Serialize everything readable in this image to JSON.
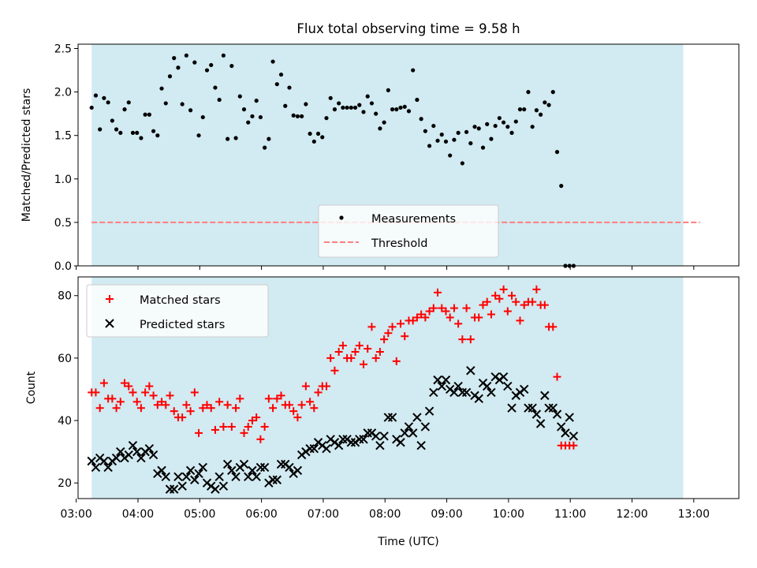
{
  "title": "Flux total observing time = 9.58 h",
  "colors": {
    "shade": "#add8e6",
    "measurement": "#000000",
    "threshold": "#ff7f7f",
    "matched": "#ff0000",
    "predicted": "#000000"
  },
  "chart_data": [
    {
      "type": "scatter",
      "title": "Flux total observing time = 9.58 h",
      "xlabel": "",
      "ylabel": "Matched/Predicted stars",
      "xlim": [
        3.03,
        13.73
      ],
      "ylim": [
        0,
        2.55
      ],
      "yticks": [
        0.0,
        0.5,
        1.0,
        1.5,
        2.0,
        2.5
      ],
      "ytick_labels": [
        "0.0",
        "0.5",
        "1.0",
        "1.5",
        "2.0",
        "2.5"
      ],
      "shaded_span": [
        3.25,
        12.83
      ],
      "threshold": 0.5,
      "threshold_span": [
        3.25,
        13.1
      ],
      "legend": {
        "position": "lower-center",
        "entries": [
          "Measurements",
          "Threshold"
        ]
      },
      "series": [
        {
          "name": "Measurements",
          "x_start": 3.25,
          "x_step": 0.0667,
          "values": [
            1.82,
            1.96,
            1.57,
            1.93,
            1.88,
            1.67,
            1.57,
            1.53,
            1.8,
            1.88,
            1.53,
            1.53,
            1.47,
            1.74,
            1.74,
            1.55,
            1.5,
            2.04,
            1.87,
            2.18,
            2.39,
            2.28,
            1.86,
            2.42,
            1.79,
            2.34,
            1.5,
            1.71,
            2.25,
            2.31,
            2.05,
            1.91,
            2.42,
            1.46,
            2.3,
            1.47,
            1.95,
            1.8,
            1.65,
            1.72,
            1.9,
            1.71,
            1.36,
            1.46,
            2.35,
            2.09,
            2.2,
            1.84,
            2.05,
            1.73,
            1.72,
            1.72,
            1.86,
            1.52,
            1.43,
            1.52,
            1.48,
            1.7,
            1.93,
            1.8,
            1.87,
            1.82,
            1.82,
            1.82,
            1.82,
            1.85,
            1.77,
            1.95,
            1.87,
            1.75,
            1.58,
            1.65,
            2.02,
            1.8,
            1.8,
            1.82,
            1.83,
            1.78,
            2.25,
            1.91,
            1.69,
            1.55,
            1.38,
            1.61,
            1.44,
            1.51,
            1.43,
            1.27,
            1.45,
            1.53,
            1.18,
            1.54,
            1.41,
            1.6,
            1.58,
            1.36,
            1.63,
            1.46,
            1.61,
            1.7,
            1.65,
            1.6,
            1.53,
            1.66,
            1.8,
            1.8,
            2.0,
            1.6,
            1.79,
            1.74,
            1.88,
            1.85,
            2.0,
            1.31,
            0.92,
            0.0,
            0.0,
            0.0
          ]
        }
      ]
    },
    {
      "type": "scatter",
      "xlabel": "Time (UTC)",
      "ylabel": "Count",
      "xlim": [
        3.03,
        13.73
      ],
      "ylim": [
        15,
        86
      ],
      "yticks": [
        20,
        40,
        60,
        80
      ],
      "ytick_labels": [
        "20",
        "40",
        "60",
        "80"
      ],
      "xticks": [
        3,
        4,
        5,
        6,
        7,
        8,
        9,
        10,
        11,
        12,
        13
      ],
      "xtick_labels": [
        "03:00",
        "04:00",
        "05:00",
        "06:00",
        "07:00",
        "08:00",
        "09:00",
        "10:00",
        "11:00",
        "12:00",
        "13:00"
      ],
      "shaded_span": [
        3.25,
        12.83
      ],
      "legend": {
        "position": "upper-left",
        "entries": [
          "Matched stars",
          "Predicted stars"
        ]
      },
      "series": [
        {
          "name": "Matched stars",
          "x_start": 3.25,
          "x_step": 0.0667,
          "values": [
            49,
            49,
            44,
            52,
            47,
            47,
            44,
            46,
            52,
            51,
            49,
            46,
            44,
            49,
            51,
            48,
            45,
            46,
            45,
            48,
            43,
            41,
            41,
            45,
            43,
            49,
            36,
            44,
            45,
            44,
            37,
            46,
            38,
            45,
            38,
            44,
            47,
            36,
            38,
            40,
            41,
            34,
            38,
            47,
            44,
            47,
            48,
            45,
            45,
            43,
            41,
            45,
            51,
            46,
            44,
            49,
            51,
            51,
            60,
            56,
            62,
            64,
            60,
            60,
            62,
            64,
            58,
            63,
            70,
            60,
            62,
            66,
            68,
            70,
            59,
            71,
            67,
            72,
            72,
            73,
            74,
            73,
            75,
            76,
            81,
            76,
            75,
            73,
            76,
            71,
            66,
            76,
            66,
            73,
            73,
            77,
            78,
            74,
            80,
            79,
            82,
            75,
            80,
            78,
            72,
            77,
            78,
            78,
            82,
            77,
            77,
            70,
            70,
            54,
            32,
            32,
            32,
            32
          ]
        },
        {
          "name": "Predicted stars",
          "x_start": 3.25,
          "x_step": 0.0667,
          "values": [
            27,
            25,
            28,
            27,
            25,
            27,
            28,
            30,
            28,
            29,
            32,
            30,
            28,
            30,
            31,
            29,
            23,
            24,
            22,
            18,
            18,
            22,
            19,
            22,
            24,
            21,
            23,
            25,
            20,
            19,
            18,
            22,
            19,
            26,
            24,
            22,
            25,
            26,
            22,
            24,
            22,
            25,
            25,
            20,
            21,
            21,
            26,
            26,
            25,
            23,
            24,
            29,
            30,
            31,
            31,
            33,
            32,
            31,
            34,
            33,
            32,
            34,
            34,
            33,
            33,
            34,
            34,
            36,
            36,
            35,
            32,
            35,
            41,
            41,
            34,
            33,
            36,
            38,
            36,
            41,
            32,
            38,
            43,
            49,
            53,
            51,
            53,
            50,
            49,
            51,
            49,
            49,
            56,
            48,
            47,
            52,
            51,
            49,
            54,
            53,
            54,
            51,
            44,
            48,
            49,
            50,
            44,
            44,
            42,
            39,
            48,
            44,
            44,
            42,
            38,
            36,
            41,
            35
          ]
        }
      ]
    }
  ]
}
